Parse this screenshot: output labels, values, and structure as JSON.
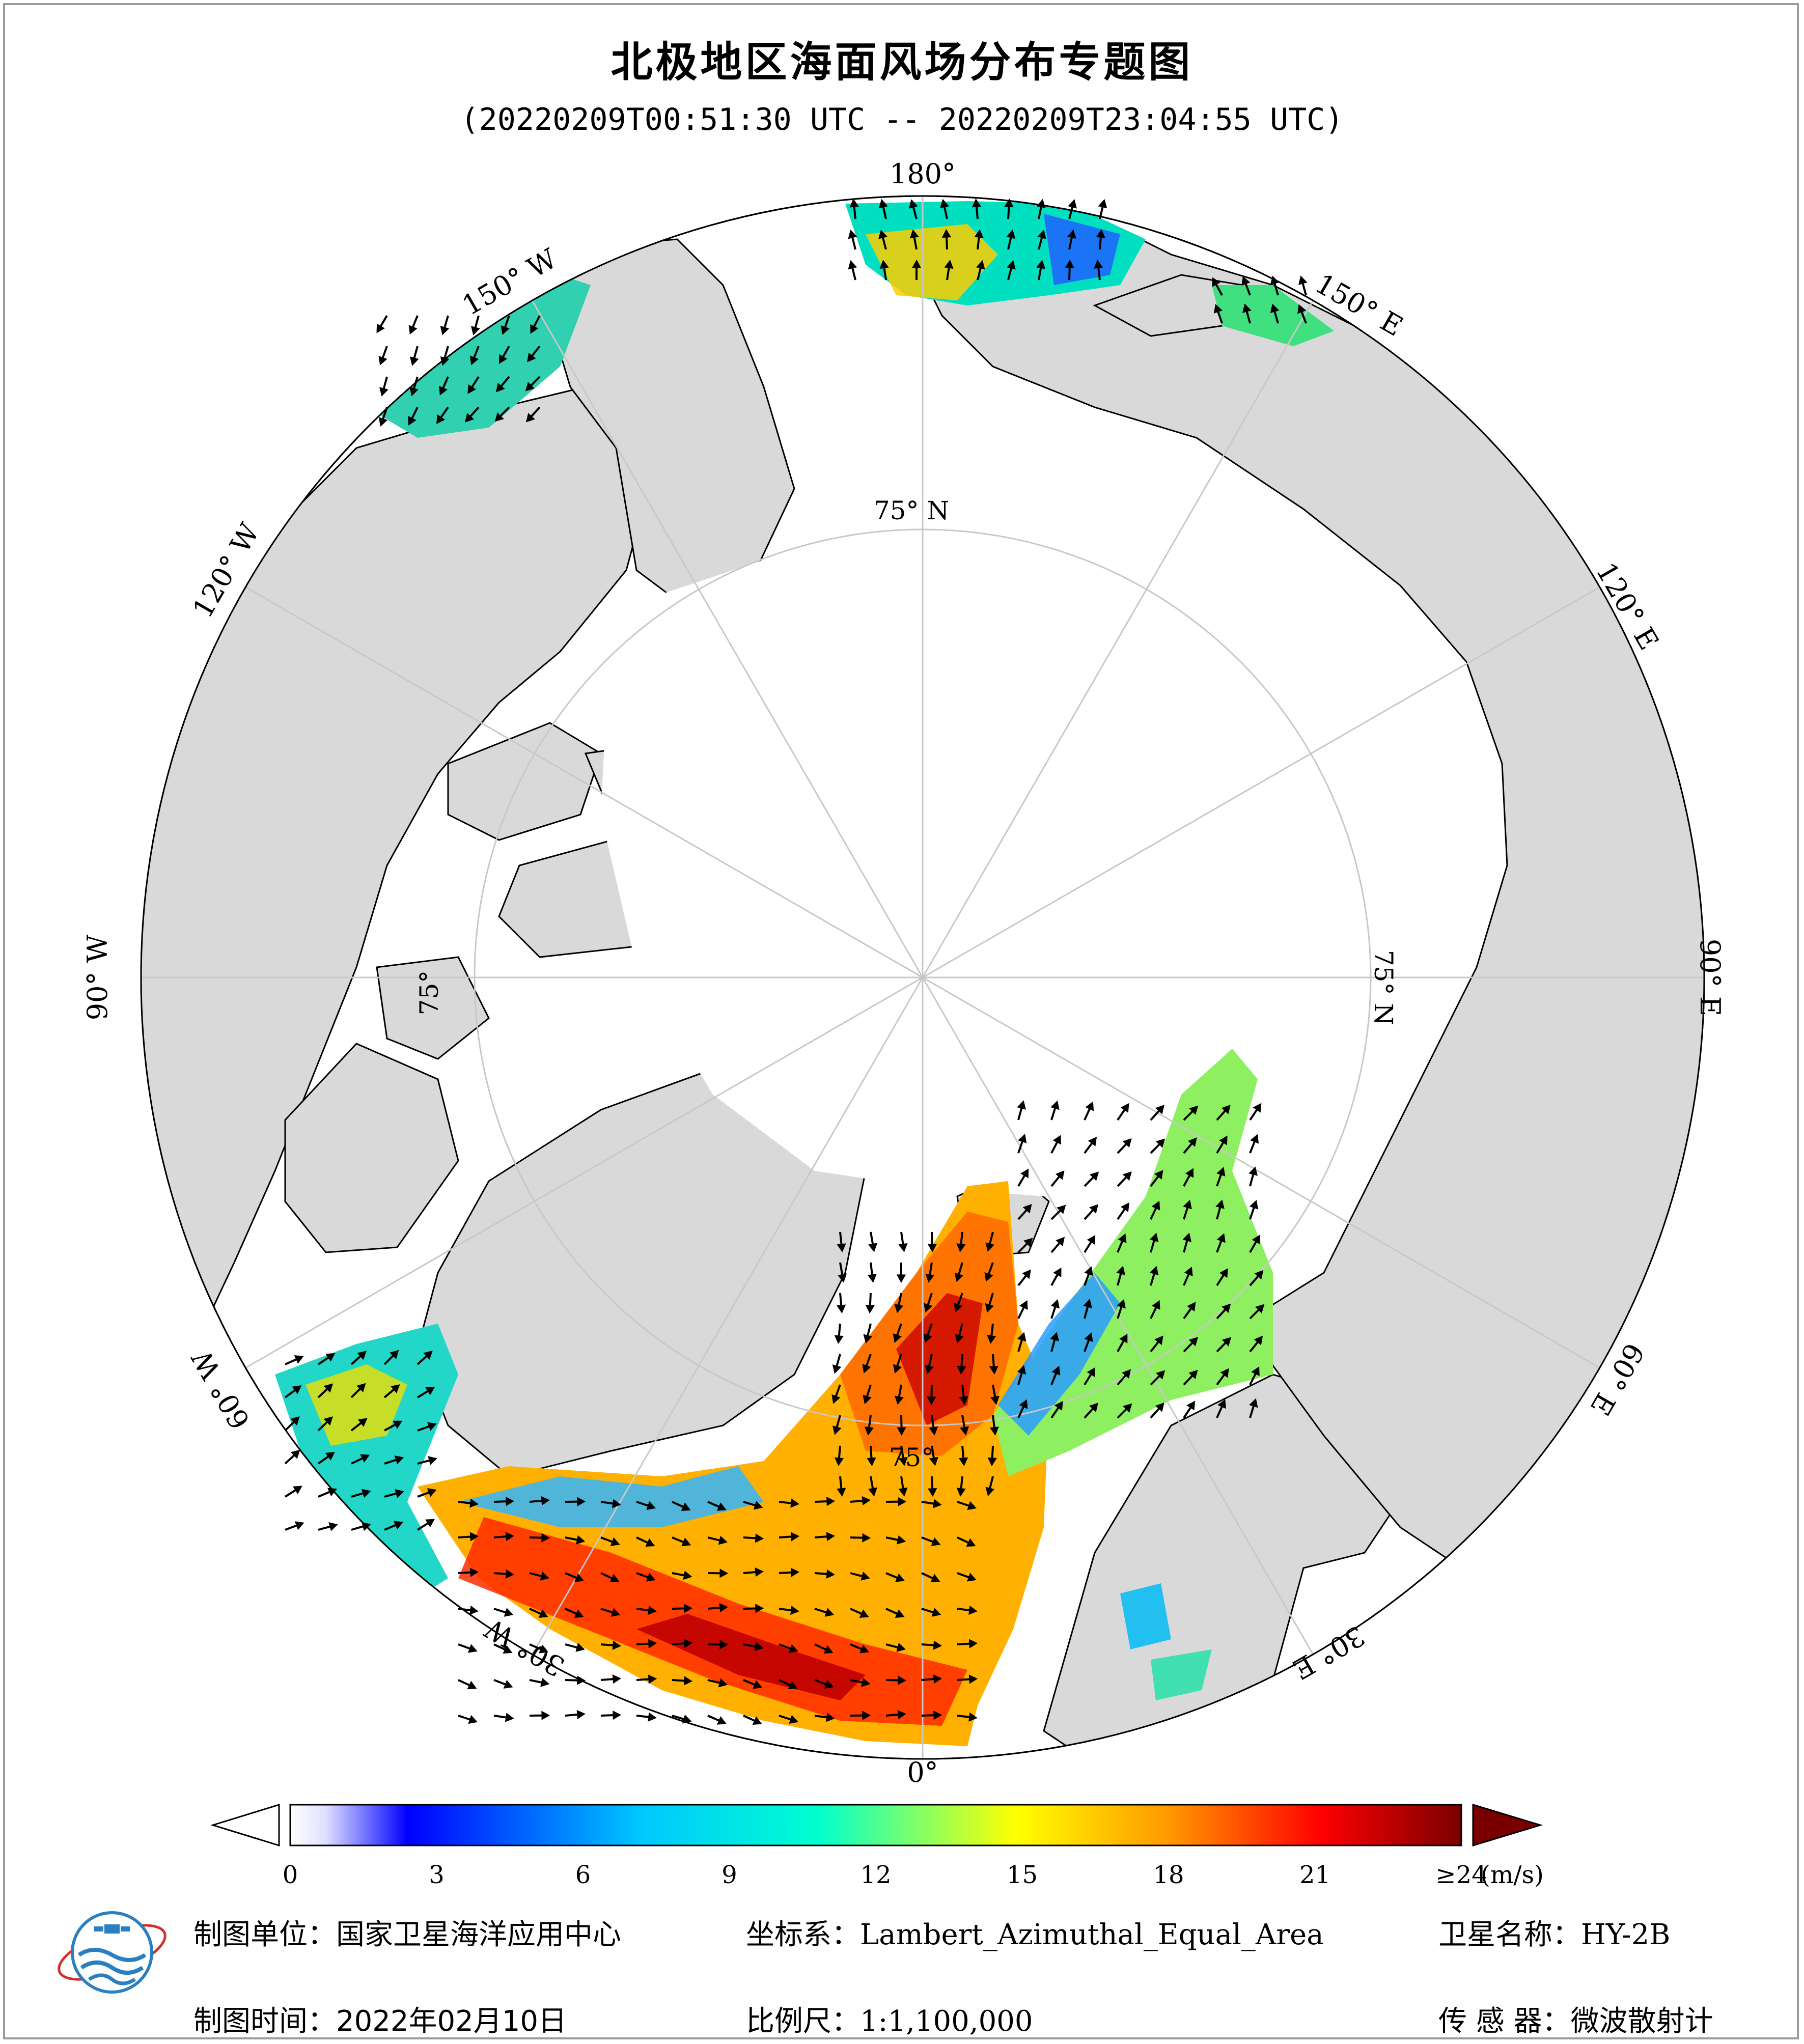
{
  "title": "北极地区海面风场分布专题图",
  "subtitle": "(20220209T00:51:30 UTC -- 20220209T23:04:55 UTC)",
  "map": {
    "projection": "Lambert_Azimuthal_Equal_Area",
    "center": "North Pole",
    "colors": {
      "land": "#d9d9d9",
      "ocean": "#ffffff",
      "coast": "#000000",
      "graticule": "#c8c8c8"
    },
    "longitude_labels": [
      "180°",
      "150° E",
      "120° E",
      "90° E",
      "60° E",
      "30° E",
      "0°",
      "30° W",
      "60° W",
      "90° W",
      "120° W",
      "150° W"
    ],
    "latitude_labels": [
      "75° N",
      "75° N",
      "75°",
      "75°"
    ]
  },
  "colorbar": {
    "unit": "(m/s)",
    "ticks": [
      "0",
      "3",
      "6",
      "9",
      "12",
      "15",
      "18",
      "21",
      "≥24"
    ],
    "range": [
      0,
      24
    ],
    "extend": "both",
    "stops": [
      "#ffffff",
      "#0000ff",
      "#00c8ff",
      "#00ffd0",
      "#ffff00",
      "#ff9900",
      "#ff0000",
      "#7a0000"
    ]
  },
  "footer": {
    "unit_label": "制图单位：",
    "unit_value": "国家卫星海洋应用中心",
    "coord_label": "坐标系：",
    "coord_value": "Lambert_Azimuthal_Equal_Area",
    "sat_label": "卫星名称：",
    "sat_value": "HY-2B",
    "date_label": "制图时间：",
    "date_value": "2022年02月10日",
    "scale_label": "比例尺：",
    "scale_value": "1:1,100,000",
    "sensor_label": "传 感 器：",
    "sensor_value": "微波散射计"
  }
}
